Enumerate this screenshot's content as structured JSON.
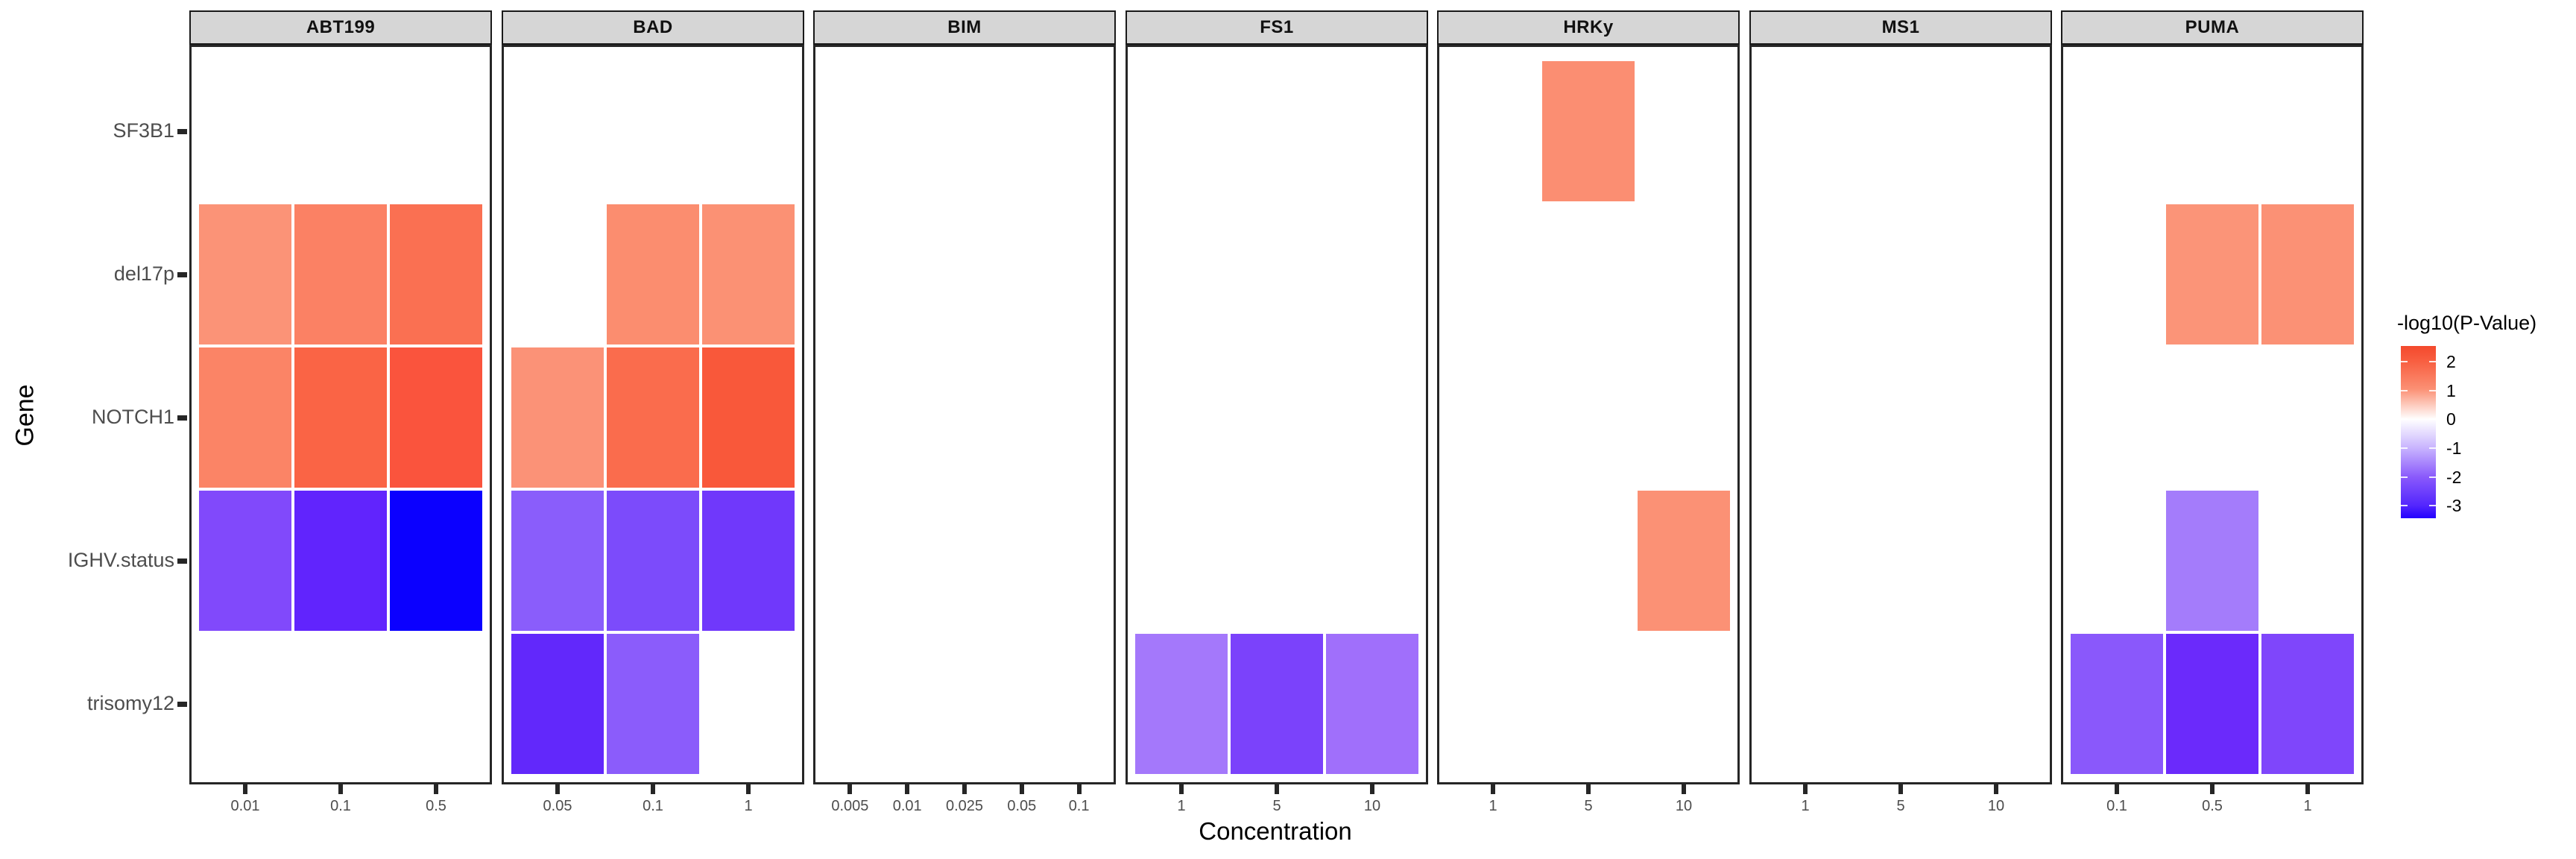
{
  "chart_data": {
    "type": "heatmap",
    "title": "",
    "xlabel": "Concentration",
    "ylabel": "Gene",
    "genes_top_to_bottom": [
      "SF3B1",
      "del17p",
      "NOTCH1",
      "IGHV.status",
      "trisomy12"
    ],
    "facet_panels": [
      {
        "label": "ABT199",
        "concentrations": [
          "0.01",
          "0.1",
          "0.5"
        ],
        "cells": [
          {
            "gene": "del17p",
            "concentration": "0.01",
            "value": 1.1,
            "color": "#FB9377"
          },
          {
            "gene": "del17p",
            "concentration": "0.1",
            "value": 1.4,
            "color": "#FB8164"
          },
          {
            "gene": "del17p",
            "concentration": "0.5",
            "value": 1.7,
            "color": "#FA7052"
          },
          {
            "gene": "NOTCH1",
            "concentration": "0.01",
            "value": 1.4,
            "color": "#FB8466"
          },
          {
            "gene": "NOTCH1",
            "concentration": "0.1",
            "value": 1.9,
            "color": "#FA6445"
          },
          {
            "gene": "NOTCH1",
            "concentration": "0.5",
            "value": 2.3,
            "color": "#FA543D"
          },
          {
            "gene": "IGHV.status",
            "concentration": "0.01",
            "value": -2.1,
            "color": "#8149FB"
          },
          {
            "gene": "IGHV.status",
            "concentration": "0.1",
            "value": -2.6,
            "color": "#6124FD"
          },
          {
            "gene": "IGHV.status",
            "concentration": "0.5",
            "value": -3.4,
            "color": "#0B00FF"
          }
        ]
      },
      {
        "label": "BAD",
        "concentrations": [
          "0.05",
          "0.1",
          "1"
        ],
        "cells": [
          {
            "gene": "del17p",
            "concentration": "0.1",
            "value": 1.3,
            "color": "#FB8D6F"
          },
          {
            "gene": "del17p",
            "concentration": "1",
            "value": 1.2,
            "color": "#FB9174"
          },
          {
            "gene": "NOTCH1",
            "concentration": "0.05",
            "value": 1.2,
            "color": "#FB9277"
          },
          {
            "gene": "NOTCH1",
            "concentration": "0.1",
            "value": 1.7,
            "color": "#FA6C4D"
          },
          {
            "gene": "NOTCH1",
            "concentration": "1",
            "value": 2.1,
            "color": "#F9583A"
          },
          {
            "gene": "IGHV.status",
            "concentration": "0.05",
            "value": -2.0,
            "color": "#8A5DFB"
          },
          {
            "gene": "IGHV.status",
            "concentration": "0.1",
            "value": -2.3,
            "color": "#7C4BFB"
          },
          {
            "gene": "IGHV.status",
            "concentration": "1",
            "value": -2.5,
            "color": "#7038FB"
          },
          {
            "gene": "trisomy12",
            "concentration": "0.05",
            "value": -2.6,
            "color": "#6228FB"
          },
          {
            "gene": "trisomy12",
            "concentration": "0.1",
            "value": -2.0,
            "color": "#8B5CFB"
          }
        ]
      },
      {
        "label": "BIM",
        "concentrations": [
          "0.005",
          "0.01",
          "0.025",
          "0.05",
          "0.1"
        ],
        "cells": []
      },
      {
        "label": "FS1",
        "concentrations": [
          "1",
          "5",
          "10"
        ],
        "cells": [
          {
            "gene": "trisomy12",
            "concentration": "1",
            "value": -1.7,
            "color": "#A478FB"
          },
          {
            "gene": "trisomy12",
            "concentration": "5",
            "value": -2.3,
            "color": "#7B42FB"
          },
          {
            "gene": "trisomy12",
            "concentration": "10",
            "value": -1.8,
            "color": "#A06FFB"
          }
        ]
      },
      {
        "label": "HRKy",
        "concentrations": [
          "1",
          "5",
          "10"
        ],
        "cells": [
          {
            "gene": "SF3B1",
            "concentration": "5",
            "value": 1.3,
            "color": "#FB8E72"
          },
          {
            "gene": "IGHV.status",
            "concentration": "10",
            "value": 1.2,
            "color": "#FB9175"
          }
        ]
      },
      {
        "label": "MS1",
        "concentrations": [
          "1",
          "5",
          "10"
        ],
        "cells": []
      },
      {
        "label": "PUMA",
        "concentrations": [
          "0.1",
          "0.5",
          "1"
        ],
        "cells": [
          {
            "gene": "del17p",
            "concentration": "0.5",
            "value": 1.1,
            "color": "#FB9478"
          },
          {
            "gene": "del17p",
            "concentration": "1",
            "value": 1.2,
            "color": "#FB9175"
          },
          {
            "gene": "IGHV.status",
            "concentration": "0.5",
            "value": -1.6,
            "color": "#A47CFB"
          },
          {
            "gene": "trisomy12",
            "concentration": "0.1",
            "value": -2.0,
            "color": "#8A58FB"
          },
          {
            "gene": "trisomy12",
            "concentration": "0.5",
            "value": -2.5,
            "color": "#6B2AFB"
          },
          {
            "gene": "trisomy12",
            "concentration": "1",
            "value": -2.3,
            "color": "#7F46FB"
          }
        ]
      }
    ],
    "legend": {
      "title": "-log10(P-Value)",
      "position": "right",
      "ticks": [
        {
          "label": "2",
          "pos_pct": 9.1
        },
        {
          "label": "1",
          "pos_pct": 25.8
        },
        {
          "label": "0",
          "pos_pct": 42.5
        },
        {
          "label": "-1",
          "pos_pct": 59.2
        },
        {
          "label": "-2",
          "pos_pct": 76.0
        },
        {
          "label": "-3",
          "pos_pct": 92.6
        }
      ],
      "gradient_stops": [
        {
          "color": "#F4492C",
          "pos_pct": 0
        },
        {
          "color": "#F85F41",
          "pos_pct": 9
        },
        {
          "color": "#FB9074",
          "pos_pct": 25
        },
        {
          "color": "#FFFFFF",
          "pos_pct": 42.5
        },
        {
          "color": "#C9B5FE",
          "pos_pct": 59
        },
        {
          "color": "#8A5AFB",
          "pos_pct": 76
        },
        {
          "color": "#5326FD",
          "pos_pct": 92.6
        },
        {
          "color": "#2300FF",
          "pos_pct": 100
        }
      ]
    },
    "style_colors": {
      "strip_background": "#D6D6D6",
      "strip_border": "#1A1A1A",
      "panel_border": "#262626",
      "axis_text": "#4D4D4D",
      "tile_border": "#FFFFFF"
    },
    "grid": "off"
  }
}
